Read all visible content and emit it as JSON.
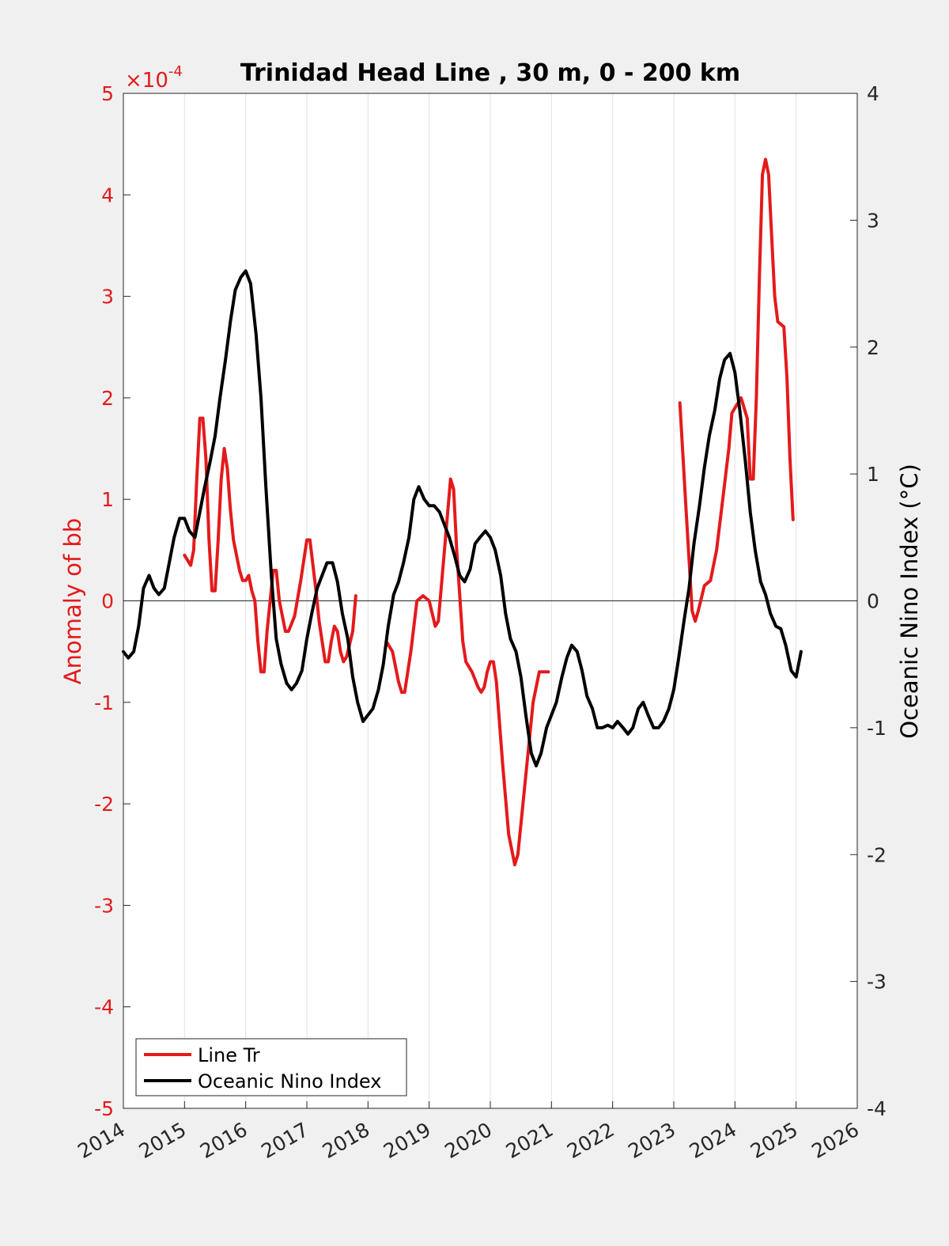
{
  "chart_data": {
    "type": "line",
    "title": "Trinidad Head Line , 30 m, 0 - 200 km",
    "xlim": [
      2014,
      2026
    ],
    "x_ticks": [
      "2014",
      "2015",
      "2016",
      "2017",
      "2018",
      "2019",
      "2020",
      "2021",
      "2022",
      "2023",
      "2024",
      "2025",
      "2026"
    ],
    "left_axis": {
      "label": "Anomaly of bb",
      "exponent_label": "×10",
      "exponent_power": "-4",
      "ylim": [
        -5,
        5
      ],
      "ticks": [
        "5",
        "4",
        "3",
        "2",
        "1",
        "0",
        "-1",
        "-2",
        "-3",
        "-4",
        "-5"
      ],
      "color": "#e41a1c"
    },
    "right_axis": {
      "label": "Oceanic Nino Index (°C)",
      "ylim": [
        -4,
        4
      ],
      "ticks": [
        "4",
        "3",
        "2",
        "1",
        "0",
        "-1",
        "-2",
        "-3",
        "-4"
      ],
      "color": "#000000"
    },
    "grid": "vertical",
    "legend_position": "bottom-left",
    "series": [
      {
        "name": "Line Tr",
        "axis": "left",
        "color": "#e41a1c",
        "segments": [
          [
            [
              2015.0,
              0.45
            ],
            [
              2015.1,
              0.35
            ],
            [
              2015.15,
              0.5
            ],
            [
              2015.2,
              1.2
            ],
            [
              2015.25,
              1.8
            ],
            [
              2015.3,
              1.8
            ],
            [
              2015.35,
              1.4
            ],
            [
              2015.4,
              0.6
            ],
            [
              2015.45,
              0.1
            ],
            [
              2015.5,
              0.1
            ],
            [
              2015.55,
              0.6
            ],
            [
              2015.6,
              1.2
            ],
            [
              2015.65,
              1.5
            ],
            [
              2015.7,
              1.3
            ],
            [
              2015.75,
              0.9
            ],
            [
              2015.8,
              0.6
            ],
            [
              2015.9,
              0.3
            ],
            [
              2015.95,
              0.2
            ],
            [
              2016.0,
              0.2
            ],
            [
              2016.05,
              0.25
            ],
            [
              2016.1,
              0.1
            ],
            [
              2016.15,
              0.0
            ],
            [
              2016.2,
              -0.4
            ],
            [
              2016.25,
              -0.7
            ],
            [
              2016.3,
              -0.7
            ],
            [
              2016.35,
              -0.3
            ],
            [
              2016.45,
              0.3
            ],
            [
              2016.5,
              0.3
            ],
            [
              2016.55,
              0.0
            ],
            [
              2016.65,
              -0.3
            ],
            [
              2016.7,
              -0.3
            ],
            [
              2016.8,
              -0.15
            ],
            [
              2016.9,
              0.2
            ],
            [
              2017.0,
              0.6
            ],
            [
              2017.05,
              0.6
            ],
            [
              2017.15,
              0.1
            ],
            [
              2017.2,
              -0.2
            ],
            [
              2017.3,
              -0.6
            ],
            [
              2017.35,
              -0.6
            ],
            [
              2017.4,
              -0.4
            ],
            [
              2017.45,
              -0.25
            ],
            [
              2017.5,
              -0.3
            ],
            [
              2017.55,
              -0.5
            ],
            [
              2017.6,
              -0.6
            ],
            [
              2017.65,
              -0.55
            ],
            [
              2017.75,
              -0.3
            ],
            [
              2017.8,
              0.05
            ]
          ],
          [
            [
              2018.3,
              -0.4
            ],
            [
              2018.4,
              -0.5
            ],
            [
              2018.5,
              -0.8
            ],
            [
              2018.55,
              -0.9
            ],
            [
              2018.6,
              -0.9
            ],
            [
              2018.7,
              -0.5
            ],
            [
              2018.8,
              0.0
            ],
            [
              2018.9,
              0.05
            ],
            [
              2019.0,
              0.0
            ],
            [
              2019.1,
              -0.25
            ],
            [
              2019.15,
              -0.2
            ],
            [
              2019.25,
              0.5
            ],
            [
              2019.35,
              1.2
            ],
            [
              2019.4,
              1.1
            ],
            [
              2019.45,
              0.5
            ],
            [
              2019.55,
              -0.4
            ],
            [
              2019.6,
              -0.6
            ],
            [
              2019.7,
              -0.7
            ],
            [
              2019.8,
              -0.85
            ],
            [
              2019.85,
              -0.9
            ],
            [
              2019.9,
              -0.85
            ],
            [
              2019.95,
              -0.7
            ],
            [
              2020.0,
              -0.6
            ],
            [
              2020.05,
              -0.6
            ],
            [
              2020.1,
              -0.8
            ],
            [
              2020.2,
              -1.6
            ],
            [
              2020.3,
              -2.3
            ],
            [
              2020.4,
              -2.6
            ],
            [
              2020.45,
              -2.5
            ],
            [
              2020.5,
              -2.2
            ],
            [
              2020.6,
              -1.6
            ],
            [
              2020.7,
              -1.0
            ],
            [
              2020.8,
              -0.7
            ],
            [
              2020.9,
              -0.7
            ],
            [
              2020.95,
              -0.7
            ]
          ],
          [
            [
              2023.1,
              1.95
            ],
            [
              2023.2,
              0.9
            ],
            [
              2023.3,
              -0.1
            ],
            [
              2023.35,
              -0.2
            ],
            [
              2023.4,
              -0.1
            ],
            [
              2023.5,
              0.15
            ],
            [
              2023.6,
              0.2
            ],
            [
              2023.7,
              0.5
            ],
            [
              2023.8,
              1.0
            ],
            [
              2023.9,
              1.5
            ],
            [
              2023.95,
              1.85
            ],
            [
              2024.0,
              1.9
            ],
            [
              2024.1,
              2.0
            ],
            [
              2024.2,
              1.8
            ],
            [
              2024.25,
              1.2
            ],
            [
              2024.3,
              1.2
            ],
            [
              2024.35,
              2.0
            ],
            [
              2024.4,
              3.2
            ],
            [
              2024.45,
              4.2
            ],
            [
              2024.5,
              4.35
            ],
            [
              2024.55,
              4.2
            ],
            [
              2024.6,
              3.6
            ],
            [
              2024.65,
              3.0
            ],
            [
              2024.7,
              2.75
            ],
            [
              2024.8,
              2.7
            ],
            [
              2024.85,
              2.2
            ],
            [
              2024.9,
              1.4
            ],
            [
              2024.95,
              0.8
            ]
          ]
        ]
      },
      {
        "name": "Oceanic Nino Index",
        "axis": "right",
        "color": "#000000",
        "segments": [
          [
            [
              2014.0,
              -0.4
            ],
            [
              2014.08,
              -0.45
            ],
            [
              2014.17,
              -0.4
            ],
            [
              2014.25,
              -0.2
            ],
            [
              2014.33,
              0.1
            ],
            [
              2014.42,
              0.2
            ],
            [
              2014.5,
              0.1
            ],
            [
              2014.58,
              0.05
            ],
            [
              2014.67,
              0.1
            ],
            [
              2014.75,
              0.3
            ],
            [
              2014.83,
              0.5
            ],
            [
              2014.92,
              0.65
            ],
            [
              2015.0,
              0.65
            ],
            [
              2015.08,
              0.55
            ],
            [
              2015.17,
              0.5
            ],
            [
              2015.25,
              0.7
            ],
            [
              2015.33,
              0.9
            ],
            [
              2015.42,
              1.1
            ],
            [
              2015.5,
              1.3
            ],
            [
              2015.58,
              1.6
            ],
            [
              2015.67,
              1.9
            ],
            [
              2015.75,
              2.2
            ],
            [
              2015.83,
              2.45
            ],
            [
              2015.92,
              2.55
            ],
            [
              2016.0,
              2.6
            ],
            [
              2016.08,
              2.5
            ],
            [
              2016.17,
              2.1
            ],
            [
              2016.25,
              1.6
            ],
            [
              2016.33,
              0.9
            ],
            [
              2016.42,
              0.2
            ],
            [
              2016.5,
              -0.3
            ],
            [
              2016.58,
              -0.5
            ],
            [
              2016.67,
              -0.65
            ],
            [
              2016.75,
              -0.7
            ],
            [
              2016.83,
              -0.65
            ],
            [
              2016.92,
              -0.55
            ],
            [
              2017.0,
              -0.3
            ],
            [
              2017.08,
              -0.1
            ],
            [
              2017.17,
              0.1
            ],
            [
              2017.25,
              0.2
            ],
            [
              2017.33,
              0.3
            ],
            [
              2017.42,
              0.3
            ],
            [
              2017.5,
              0.15
            ],
            [
              2017.58,
              -0.1
            ],
            [
              2017.67,
              -0.3
            ],
            [
              2017.75,
              -0.6
            ],
            [
              2017.83,
              -0.8
            ],
            [
              2017.92,
              -0.95
            ],
            [
              2018.0,
              -0.9
            ],
            [
              2018.08,
              -0.85
            ],
            [
              2018.17,
              -0.7
            ],
            [
              2018.25,
              -0.5
            ],
            [
              2018.33,
              -0.2
            ],
            [
              2018.42,
              0.05
            ],
            [
              2018.5,
              0.15
            ],
            [
              2018.58,
              0.3
            ],
            [
              2018.67,
              0.5
            ],
            [
              2018.75,
              0.8
            ],
            [
              2018.83,
              0.9
            ],
            [
              2018.92,
              0.8
            ],
            [
              2019.0,
              0.75
            ],
            [
              2019.08,
              0.75
            ],
            [
              2019.17,
              0.7
            ],
            [
              2019.25,
              0.6
            ],
            [
              2019.33,
              0.5
            ],
            [
              2019.42,
              0.35
            ],
            [
              2019.5,
              0.2
            ],
            [
              2019.58,
              0.15
            ],
            [
              2019.67,
              0.25
            ],
            [
              2019.75,
              0.45
            ],
            [
              2019.83,
              0.5
            ],
            [
              2019.92,
              0.55
            ],
            [
              2020.0,
              0.5
            ],
            [
              2020.08,
              0.4
            ],
            [
              2020.17,
              0.2
            ],
            [
              2020.25,
              -0.1
            ],
            [
              2020.33,
              -0.3
            ],
            [
              2020.42,
              -0.4
            ],
            [
              2020.5,
              -0.6
            ],
            [
              2020.58,
              -0.9
            ],
            [
              2020.67,
              -1.2
            ],
            [
              2020.75,
              -1.3
            ],
            [
              2020.83,
              -1.2
            ],
            [
              2020.92,
              -1.0
            ],
            [
              2021.0,
              -0.9
            ],
            [
              2021.08,
              -0.8
            ],
            [
              2021.17,
              -0.6
            ],
            [
              2021.25,
              -0.45
            ],
            [
              2021.33,
              -0.35
            ],
            [
              2021.42,
              -0.4
            ],
            [
              2021.5,
              -0.55
            ],
            [
              2021.58,
              -0.75
            ],
            [
              2021.67,
              -0.85
            ],
            [
              2021.75,
              -1.0
            ],
            [
              2021.83,
              -1.0
            ],
            [
              2021.92,
              -0.98
            ],
            [
              2022.0,
              -1.0
            ],
            [
              2022.08,
              -0.95
            ],
            [
              2022.17,
              -1.0
            ],
            [
              2022.25,
              -1.05
            ],
            [
              2022.33,
              -1.0
            ],
            [
              2022.42,
              -0.85
            ],
            [
              2022.5,
              -0.8
            ],
            [
              2022.58,
              -0.9
            ],
            [
              2022.67,
              -1.0
            ],
            [
              2022.75,
              -1.0
            ],
            [
              2022.83,
              -0.95
            ],
            [
              2022.92,
              -0.85
            ],
            [
              2023.0,
              -0.7
            ],
            [
              2023.08,
              -0.45
            ],
            [
              2023.17,
              -0.15
            ],
            [
              2023.25,
              0.1
            ],
            [
              2023.33,
              0.45
            ],
            [
              2023.42,
              0.75
            ],
            [
              2023.5,
              1.05
            ],
            [
              2023.58,
              1.3
            ],
            [
              2023.67,
              1.5
            ],
            [
              2023.75,
              1.75
            ],
            [
              2023.83,
              1.9
            ],
            [
              2023.92,
              1.95
            ],
            [
              2024.0,
              1.8
            ],
            [
              2024.08,
              1.5
            ],
            [
              2024.17,
              1.1
            ],
            [
              2024.25,
              0.7
            ],
            [
              2024.33,
              0.4
            ],
            [
              2024.42,
              0.15
            ],
            [
              2024.5,
              0.05
            ],
            [
              2024.58,
              -0.1
            ],
            [
              2024.67,
              -0.2
            ],
            [
              2024.75,
              -0.22
            ],
            [
              2024.83,
              -0.35
            ],
            [
              2024.92,
              -0.55
            ],
            [
              2025.0,
              -0.6
            ],
            [
              2025.08,
              -0.4
            ]
          ]
        ]
      }
    ]
  }
}
